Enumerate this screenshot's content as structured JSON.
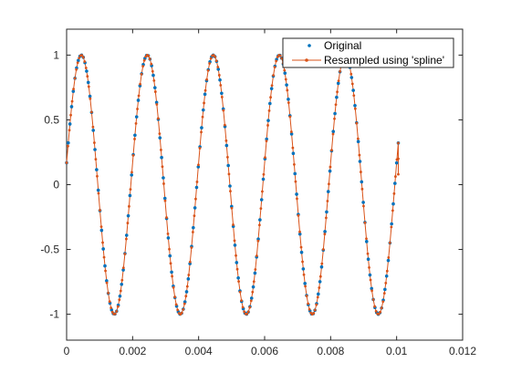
{
  "chart_data": {
    "type": "line",
    "title": "",
    "xlabel": "",
    "ylabel": "",
    "xlim": [
      0,
      0.012
    ],
    "ylim": [
      -1.2,
      1.2
    ],
    "x_ticks": [
      0,
      0.002,
      0.004,
      0.006,
      0.008,
      0.01,
      0.012
    ],
    "x_tick_labels": [
      "0",
      "0.002",
      "0.004",
      "0.006",
      "0.008",
      "0.01",
      "0.012"
    ],
    "y_ticks": [
      1,
      0.5,
      0,
      -0.5,
      -1
    ],
    "y_tick_labels": [
      "1",
      "0.5",
      "0",
      "-0.5",
      "-1"
    ],
    "grid": false,
    "legend_position": "top-right",
    "signal": {
      "function": "sine",
      "frequency_hz": 500,
      "phase_rad": 0.17,
      "amplitude": 1,
      "x_start": 0,
      "x_end": 0.01005
    },
    "series": [
      {
        "name": "Original",
        "style": "markers",
        "color": "#0072BD",
        "marker": "dot",
        "n_points": 200
      },
      {
        "name": "Resampled using 'spline'",
        "style": "line+markers",
        "color": "#D95319",
        "marker": "dot",
        "n_points": 240
      }
    ],
    "end_points": [
      {
        "x": 0.01005,
        "y": 0.2
      },
      {
        "x": 0.01005,
        "y": 0.08
      }
    ]
  }
}
